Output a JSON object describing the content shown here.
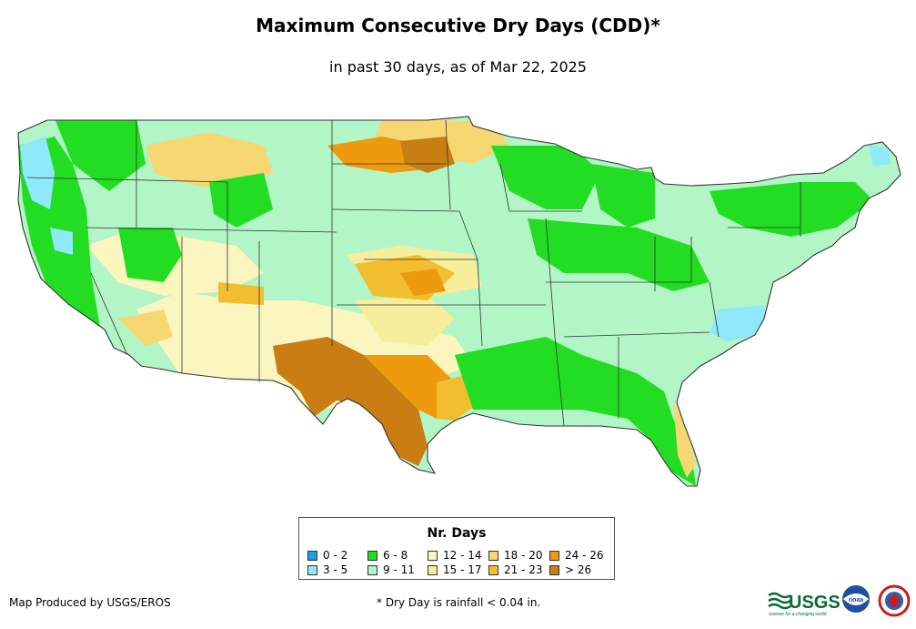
{
  "title": "Maximum Consecutive Dry Days (CDD)*",
  "subtitle": "in past 30 days, as of Mar 22, 2025",
  "legend": {
    "title": "Nr. Days",
    "items": [
      {
        "label": "0 - 2",
        "color": "#1a9cf0"
      },
      {
        "label": "6 - 8",
        "color": "#22dd22"
      },
      {
        "label": "12 - 14",
        "color": "#fbf6c0"
      },
      {
        "label": "18 - 20",
        "color": "#f6d772"
      },
      {
        "label": "24 - 26",
        "color": "#ee9a0e"
      },
      {
        "label": "3 - 5",
        "color": "#8fe9fb"
      },
      {
        "label": "9 - 11",
        "color": "#b2f5c6"
      },
      {
        "label": "15 - 17",
        "color": "#f6ee9a"
      },
      {
        "label": "21 - 23",
        "color": "#f2bd2e"
      },
      {
        "label": "> 26",
        "color": "#c97d12"
      }
    ]
  },
  "footer": {
    "producer": "Map Produced by USGS/EROS",
    "footnote": "* Dry Day is rainfall < 0.04 in."
  },
  "logos": {
    "usgs": "USGS",
    "usgs_tagline": "science for a changing world",
    "noaa": "noaa"
  },
  "map": {
    "base_color": "#b2f5c6",
    "border_color": "#333333"
  }
}
